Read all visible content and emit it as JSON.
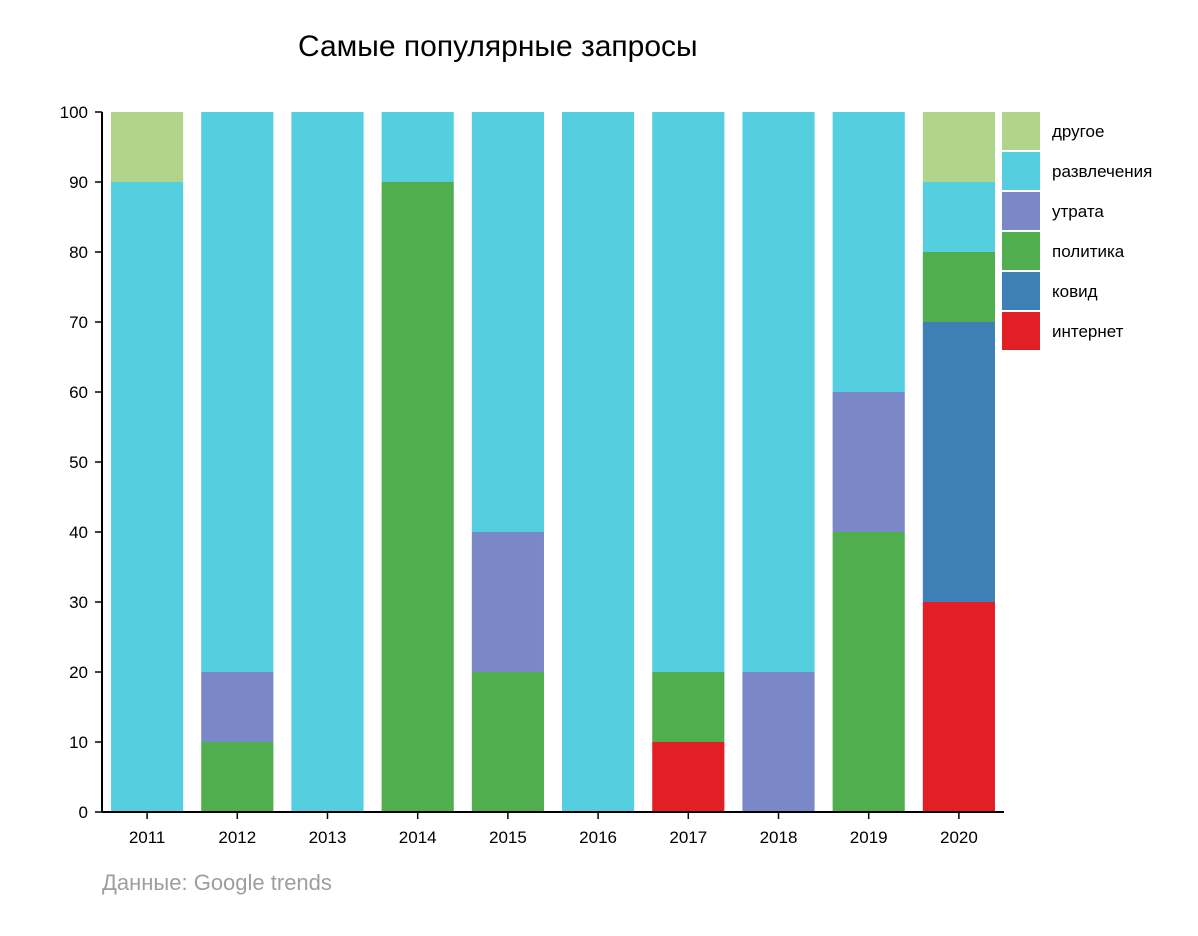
{
  "chart_data": {
    "type": "bar",
    "stacked": true,
    "title": "Самые популярные запросы",
    "source": "Данные: Google trends",
    "xlabel": "",
    "ylabel": "",
    "ylim": [
      0,
      100
    ],
    "yticks": [
      0,
      10,
      20,
      30,
      40,
      50,
      60,
      70,
      80,
      90,
      100
    ],
    "categories": [
      "2011",
      "2012",
      "2013",
      "2014",
      "2015",
      "2016",
      "2017",
      "2018",
      "2019",
      "2020"
    ],
    "legend_position": "right",
    "grid": false,
    "series": [
      {
        "name": "интернет",
        "color": "#e31f26",
        "values": [
          0,
          0,
          0,
          0,
          0,
          0,
          10,
          0,
          0,
          30
        ]
      },
      {
        "name": "ковид",
        "color": "#3e7fb6",
        "values": [
          0,
          0,
          0,
          0,
          0,
          0,
          0,
          0,
          0,
          40
        ]
      },
      {
        "name": "политика",
        "color": "#51ae4f",
        "values": [
          0,
          10,
          0,
          90,
          20,
          0,
          10,
          0,
          40,
          10
        ]
      },
      {
        "name": "утрата",
        "color": "#7b88c8",
        "values": [
          0,
          10,
          0,
          0,
          20,
          0,
          0,
          20,
          20,
          0
        ]
      },
      {
        "name": "развлечения",
        "color": "#55cfe0",
        "values": [
          90,
          80,
          100,
          10,
          60,
          100,
          80,
          80,
          40,
          10
        ]
      },
      {
        "name": "другое",
        "color": "#b0d489",
        "values": [
          10,
          0,
          0,
          0,
          0,
          0,
          0,
          0,
          0,
          10
        ]
      }
    ],
    "legend_order": [
      "другое",
      "развлечения",
      "утрата",
      "политика",
      "ковид",
      "интернет"
    ]
  }
}
